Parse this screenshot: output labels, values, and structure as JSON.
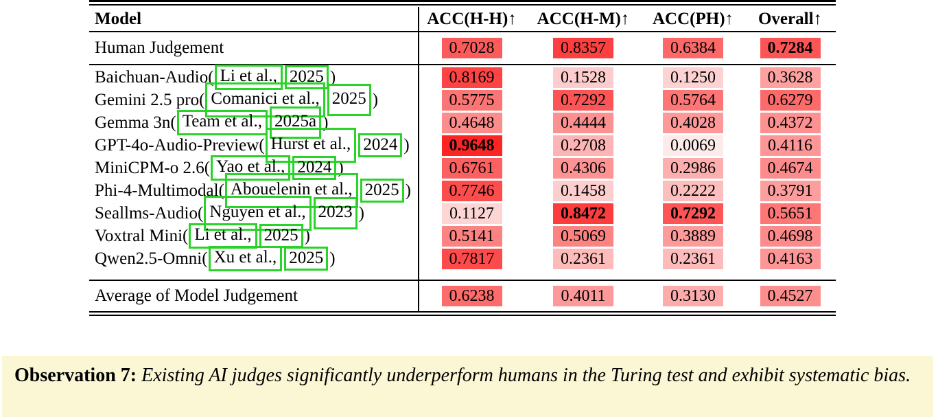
{
  "table": {
    "columns": [
      "Model",
      "ACC(H-H)↑",
      "ACC(H-M)↑",
      "ACC(PH)↑",
      "Overall↑"
    ],
    "human_row": {
      "label": "Human Judgement",
      "values": [
        "0.7028",
        "0.8357",
        "0.6384",
        "0.7284"
      ],
      "bold": [
        false,
        false,
        false,
        true
      ]
    },
    "model_rows": [
      {
        "name": "Baichuan-Audio",
        "cite_author": "Li et al.,",
        "cite_year": "2025",
        "values": [
          "0.8169",
          "0.1528",
          "0.1250",
          "0.3628"
        ],
        "bold": [
          false,
          false,
          false,
          false
        ]
      },
      {
        "name": "Gemini 2.5 pro",
        "cite_author": "Comanici et al.,",
        "cite_year": "2025",
        "values": [
          "0.5775",
          "0.7292",
          "0.5764",
          "0.6279"
        ],
        "bold": [
          false,
          false,
          false,
          false
        ]
      },
      {
        "name": "Gemma 3n",
        "cite_author": "Team et al.,",
        "cite_year": "2025a",
        "values": [
          "0.4648",
          "0.4444",
          "0.4028",
          "0.4372"
        ],
        "bold": [
          false,
          false,
          false,
          false
        ]
      },
      {
        "name": "GPT-4o-Audio-Preview",
        "cite_author": "Hurst et al.,",
        "cite_year": "2024",
        "values": [
          "0.9648",
          "0.2708",
          "0.0069",
          "0.4116"
        ],
        "bold": [
          true,
          false,
          false,
          false
        ]
      },
      {
        "name": "MiniCPM-o 2.6",
        "cite_author": "Yao et al.,",
        "cite_year": "2024",
        "values": [
          "0.6761",
          "0.4306",
          "0.2986",
          "0.4674"
        ],
        "bold": [
          false,
          false,
          false,
          false
        ]
      },
      {
        "name": "Phi-4-Multimodal",
        "cite_author": "Abouelenin et al.,",
        "cite_year": "2025",
        "values": [
          "0.7746",
          "0.1458",
          "0.2222",
          "0.3791"
        ],
        "bold": [
          false,
          false,
          false,
          false
        ]
      },
      {
        "name": "Seallms-Audio",
        "cite_author": "Nguyen et al.,",
        "cite_year": "2023",
        "values": [
          "0.1127",
          "0.8472",
          "0.7292",
          "0.5651"
        ],
        "bold": [
          false,
          true,
          true,
          false
        ]
      },
      {
        "name": "Voxtral Mini",
        "cite_author": "Li et al.,",
        "cite_year": "2025",
        "values": [
          "0.5141",
          "0.5069",
          "0.3889",
          "0.4698"
        ],
        "bold": [
          false,
          false,
          false,
          false
        ]
      },
      {
        "name": "Qwen2.5-Omni",
        "cite_author": "Xu et al.,",
        "cite_year": "2025",
        "values": [
          "0.7817",
          "0.2361",
          "0.2361",
          "0.4163"
        ],
        "bold": [
          false,
          false,
          false,
          false
        ]
      }
    ],
    "average_row": {
      "label": "Average of Model Judgement",
      "values": [
        "0.6238",
        "0.4011",
        "0.3130",
        "0.4527"
      ],
      "bold": [
        false,
        false,
        false,
        false
      ]
    }
  },
  "observation": {
    "label": "Observation 7:",
    "text": "Existing AI judges significantly underperform humans in the Turing test and exhibit systematic bias."
  },
  "colors": {
    "heat_min": "#fdecec",
    "heat_max": "#fd1d1d",
    "annotation_green": "#2ad32a",
    "observation_bg": "#fbf7d5"
  }
}
